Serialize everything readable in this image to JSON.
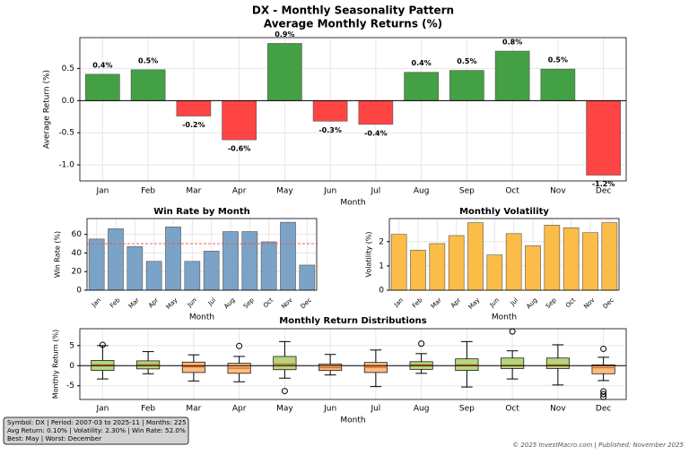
{
  "chart_data": [
    {
      "type": "bar",
      "title": "DX - Monthly Seasonality Pattern",
      "subtitle": "Average Monthly Returns (%)",
      "x_label": "Month",
      "y_label": "Average Return (%)",
      "categories": [
        "Jan",
        "Feb",
        "Mar",
        "Apr",
        "May",
        "Jun",
        "Jul",
        "Aug",
        "Sep",
        "Oct",
        "Nov",
        "Dec"
      ],
      "values": [
        0.41,
        0.48,
        -0.24,
        -0.61,
        0.89,
        -0.32,
        -0.37,
        0.44,
        0.47,
        0.77,
        0.49,
        -1.16
      ],
      "value_labels": [
        "0.4%",
        "0.5%",
        "-0.2%",
        "-0.6%",
        "0.9%",
        "-0.3%",
        "-0.4%",
        "0.4%",
        "0.5%",
        "0.8%",
        "0.5%",
        "-1.2%"
      ],
      "colors": [
        "#44a044",
        "#44a044",
        "#ff4444",
        "#ff4444",
        "#44a044",
        "#ff4444",
        "#ff4444",
        "#44a044",
        "#44a044",
        "#44a044",
        "#44a044",
        "#ff4444"
      ],
      "ylim": [
        -1.25,
        0.98
      ],
      "yticks": [
        {
          "value": -1,
          "label": "-1.0"
        },
        -0.5,
        {
          "value": 0,
          "label": "0.0"
        },
        0.5
      ],
      "grid": true,
      "hline": {
        "value": 0,
        "color": "#000000",
        "dashed": false
      }
    },
    {
      "type": "bar",
      "title": "Win Rate by Month",
      "x_label": "Month",
      "y_label": "Win Rate (%)",
      "categories": [
        "Jan",
        "Feb",
        "Mar",
        "Apr",
        "May",
        "Jun",
        "Jul",
        "Aug",
        "Sep",
        "Oct",
        "Nov",
        "Dec"
      ],
      "values": [
        55,
        66,
        47,
        31,
        68,
        31,
        42,
        63,
        63,
        52,
        73,
        27
      ],
      "color": "#7ba3c8",
      "ylim": [
        0,
        77
      ],
      "yticks": [
        0,
        20,
        40,
        60
      ],
      "grid": true,
      "x_label_rotation": 45,
      "hline": {
        "value": 50,
        "color": "#ff4444",
        "dashed": true
      }
    },
    {
      "type": "bar",
      "title": "Monthly Volatility",
      "x_label": "Month",
      "y_label": "Volatility (%)",
      "categories": [
        "Jan",
        "Feb",
        "Mar",
        "Apr",
        "May",
        "Jun",
        "Jul",
        "Aug",
        "Sep",
        "Oct",
        "Nov",
        "Dec"
      ],
      "values": [
        2.3,
        1.65,
        1.92,
        2.25,
        2.78,
        1.45,
        2.33,
        1.83,
        2.68,
        2.57,
        2.37,
        2.78
      ],
      "color": "#fbbd48",
      "ylim": [
        0,
        2.95
      ],
      "yticks": [
        0,
        1,
        2
      ],
      "grid": true,
      "x_label_rotation": 45
    },
    {
      "type": "box",
      "title": "Monthly Return Distributions",
      "x_label": "Month",
      "y_label": "Monthly Return (%)",
      "categories": [
        "Jan",
        "Feb",
        "Mar",
        "Apr",
        "May",
        "Jun",
        "Jul",
        "Aug",
        "Sep",
        "Oct",
        "Nov",
        "Dec"
      ],
      "boxes": [
        {
          "whislo": -3.3,
          "q1": -1.2,
          "med": 0.2,
          "q3": 1.3,
          "whishi": 5,
          "fliers": [
            5.2
          ]
        },
        {
          "whislo": -2,
          "q1": -0.8,
          "med": 0.3,
          "q3": 1.2,
          "whishi": 3.5,
          "fliers": []
        },
        {
          "whislo": -3.8,
          "q1": -1.7,
          "med": -0.3,
          "q3": 0.9,
          "whishi": 2.7,
          "fliers": []
        },
        {
          "whislo": -4,
          "q1": -1.9,
          "med": -0.6,
          "q3": 0.6,
          "whishi": 2.3,
          "fliers": [
            4.9
          ]
        },
        {
          "whislo": -3.1,
          "q1": -1,
          "med": 0.4,
          "q3": 2.3,
          "whishi": 6,
          "fliers": [
            -6.3
          ]
        },
        {
          "whislo": -2.3,
          "q1": -1.2,
          "med": -0.5,
          "q3": 0.4,
          "whishi": 2.8,
          "fliers": []
        },
        {
          "whislo": -5.2,
          "q1": -1.7,
          "med": -0.4,
          "q3": 0.8,
          "whishi": 3.9,
          "fliers": []
        },
        {
          "whislo": -1.9,
          "q1": -0.9,
          "med": 0.2,
          "q3": 1,
          "whishi": 3,
          "fliers": [
            5.5
          ]
        },
        {
          "whislo": -5.3,
          "q1": -1.2,
          "med": 0.2,
          "q3": 1.7,
          "whishi": 6,
          "fliers": []
        },
        {
          "whislo": -3.3,
          "q1": -0.7,
          "med": 0.1,
          "q3": 1.9,
          "whishi": 3.7,
          "fliers": [
            8.5
          ]
        },
        {
          "whislo": -4.8,
          "q1": -0.7,
          "med": 0.2,
          "q3": 1.9,
          "whishi": 5.2,
          "fliers": []
        },
        {
          "whislo": -3.7,
          "q1": -2,
          "med": -0.5,
          "q3": 0.2,
          "whishi": 2.1,
          "fliers": [
            4.2,
            -6.4,
            -7.1,
            -7.8
          ]
        }
      ],
      "colors": [
        "#b5d67e",
        "#b5d67e",
        "#fbbd80",
        "#fbbd80",
        "#b5d67e",
        "#fbbd80",
        "#fbbd80",
        "#b5d67e",
        "#b5d67e",
        "#b5d67e",
        "#b5d67e",
        "#fbbd80"
      ],
      "ylim": [
        -8.4,
        9.2
      ],
      "yticks": [
        -5,
        0,
        5
      ],
      "grid": true,
      "hline": {
        "value": 0,
        "color": "#000000",
        "dashed": false
      }
    }
  ],
  "info_box": [
    "Symbol: DX | Period: 2007-03 to 2025-11 | Months: 225",
    "Avg Return: 0.10% | Volatility: 2.30% | Win Rate: 52.0%",
    "Best: May | Worst: December"
  ],
  "footer": "© 2025 InvestMacro.com | Published: November 2025"
}
